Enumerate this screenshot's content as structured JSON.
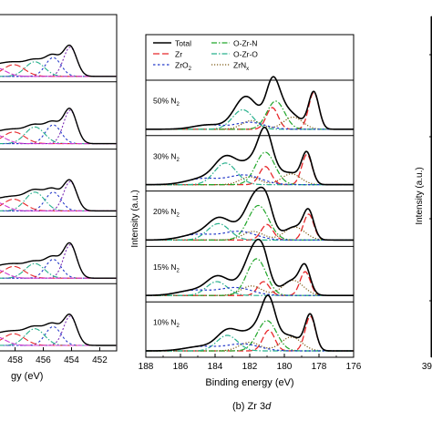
{
  "chart_data": {
    "type": "line",
    "panels": [
      {
        "id": "a",
        "partial": true,
        "x_tick_labels": [
          "458",
          "456",
          "454",
          "452"
        ],
        "x_ticks": [
          458,
          456,
          454,
          452
        ],
        "xlim": [
          459.2,
          450.8
        ],
        "xlabel_fragment": "gy (eV)",
        "stack_count": 5
      },
      {
        "id": "b",
        "caption_prefix": "(b) Zr 3",
        "caption_italic": "d",
        "xlabel": "Binding energy (eV)",
        "ylabel": "Intensity (a.u.)",
        "xlim": [
          188,
          176
        ],
        "x_ticks": [
          188,
          186,
          184,
          182,
          180,
          178,
          176
        ],
        "x_tick_labels": [
          "188",
          "186",
          "184",
          "182",
          "180",
          "178",
          "176"
        ],
        "legend": [
          "Total",
          "Zr",
          "ZrO₂",
          "O-Zr-N",
          "O-Zr-O",
          "ZrNₓ"
        ],
        "series_styles": [
          {
            "name": "Total",
            "color": "#000000",
            "dash": "",
            "width": 1.6
          },
          {
            "name": "Zr",
            "color": "#e8282b",
            "dash": "7,3",
            "width": 1.3
          },
          {
            "name": "ZrO₂",
            "color": "#2339c9",
            "dash": "2.5,2.5",
            "width": 1.2
          },
          {
            "name": "O-Zr-N",
            "color": "#21a62a",
            "dash": "6,2,1.5,2",
            "width": 1.2
          },
          {
            "name": "O-Zr-O",
            "color": "#27b08c",
            "dash": "6,2,1.5,2",
            "width": 1.2
          },
          {
            "name": "ZrNₓ",
            "color": "#7d5a14",
            "dash": "1.2,1.8",
            "width": 1.2
          }
        ],
        "stacks": [
          {
            "label_prefix": "50% N",
            "label_sub": "2",
            "peaks": [
              {
                "series": "Zr",
                "center": 178.3,
                "fwhm": 0.7,
                "height": 0.85
              },
              {
                "series": "Zr",
                "center": 180.7,
                "fwhm": 0.8,
                "height": 0.5
              },
              {
                "series": "ZrNₓ",
                "center": 179.5,
                "fwhm": 1.3,
                "height": 0.28
              },
              {
                "series": "ZrNₓ",
                "center": 181.9,
                "fwhm": 1.3,
                "height": 0.2
              },
              {
                "series": "O-Zr-N",
                "center": 180.5,
                "fwhm": 1.2,
                "height": 0.65
              },
              {
                "series": "O-Zr-O",
                "center": 182.4,
                "fwhm": 1.4,
                "height": 0.45
              },
              {
                "series": "ZrO₂",
                "center": 182.0,
                "fwhm": 2.0,
                "height": 0.16
              },
              {
                "series": "ZrO₂",
                "center": 184.4,
                "fwhm": 2.0,
                "height": 0.1
              }
            ]
          },
          {
            "label_prefix": "30% N",
            "label_sub": "2",
            "peaks": [
              {
                "series": "Zr",
                "center": 178.7,
                "fwhm": 0.7,
                "height": 0.7
              },
              {
                "series": "Zr",
                "center": 181.1,
                "fwhm": 0.8,
                "height": 0.42
              },
              {
                "series": "ZrNₓ",
                "center": 179.6,
                "fwhm": 1.3,
                "height": 0.25
              },
              {
                "series": "ZrNₓ",
                "center": 182.0,
                "fwhm": 1.3,
                "height": 0.18
              },
              {
                "series": "O-Zr-N",
                "center": 181.1,
                "fwhm": 1.3,
                "height": 0.75
              },
              {
                "series": "O-Zr-O",
                "center": 183.4,
                "fwhm": 1.5,
                "height": 0.5
              },
              {
                "series": "ZrO₂",
                "center": 182.3,
                "fwhm": 2.2,
                "height": 0.22
              },
              {
                "series": "ZrO₂",
                "center": 184.7,
                "fwhm": 2.2,
                "height": 0.14
              }
            ]
          },
          {
            "label_prefix": "20% N",
            "label_sub": "2",
            "peaks": [
              {
                "series": "Zr",
                "center": 178.6,
                "fwhm": 0.7,
                "height": 0.6
              },
              {
                "series": "Zr",
                "center": 181.0,
                "fwhm": 0.8,
                "height": 0.36
              },
              {
                "series": "ZrNₓ",
                "center": 179.4,
                "fwhm": 1.4,
                "height": 0.3
              },
              {
                "series": "ZrNₓ",
                "center": 181.8,
                "fwhm": 1.4,
                "height": 0.2
              },
              {
                "series": "O-Zr-N",
                "center": 181.5,
                "fwhm": 1.4,
                "height": 0.8
              },
              {
                "series": "O-Zr-O",
                "center": 183.8,
                "fwhm": 1.5,
                "height": 0.38
              },
              {
                "series": "ZrO₂",
                "center": 182.6,
                "fwhm": 2.2,
                "height": 0.2
              },
              {
                "series": "ZrO₂",
                "center": 185.0,
                "fwhm": 2.2,
                "height": 0.13
              }
            ]
          },
          {
            "label_prefix": "15% N",
            "label_sub": "2",
            "peaks": [
              {
                "series": "Zr",
                "center": 178.8,
                "fwhm": 0.7,
                "height": 0.55
              },
              {
                "series": "Zr",
                "center": 181.2,
                "fwhm": 0.8,
                "height": 0.32
              },
              {
                "series": "ZrNₓ",
                "center": 179.5,
                "fwhm": 1.4,
                "height": 0.35
              },
              {
                "series": "ZrNₓ",
                "center": 181.9,
                "fwhm": 1.4,
                "height": 0.22
              },
              {
                "series": "O-Zr-N",
                "center": 181.6,
                "fwhm": 1.3,
                "height": 0.85
              },
              {
                "series": "O-Zr-O",
                "center": 183.9,
                "fwhm": 1.4,
                "height": 0.32
              },
              {
                "series": "ZrO₂",
                "center": 182.8,
                "fwhm": 2.2,
                "height": 0.18
              },
              {
                "series": "ZrO₂",
                "center": 185.2,
                "fwhm": 2.2,
                "height": 0.12
              }
            ]
          },
          {
            "label_prefix": "10% N",
            "label_sub": "2",
            "peaks": [
              {
                "series": "Zr",
                "center": 178.5,
                "fwhm": 0.7,
                "height": 0.8
              },
              {
                "series": "Zr",
                "center": 180.9,
                "fwhm": 0.8,
                "height": 0.48
              },
              {
                "series": "ZrNₓ",
                "center": 179.6,
                "fwhm": 1.4,
                "height": 0.32
              },
              {
                "series": "ZrNₓ",
                "center": 182.0,
                "fwhm": 1.4,
                "height": 0.2
              },
              {
                "series": "O-Zr-N",
                "center": 181.0,
                "fwhm": 1.3,
                "height": 0.7
              },
              {
                "series": "O-Zr-O",
                "center": 183.3,
                "fwhm": 1.4,
                "height": 0.36
              },
              {
                "series": "ZrO₂",
                "center": 182.4,
                "fwhm": 2.2,
                "height": 0.16
              },
              {
                "series": "ZrO₂",
                "center": 184.8,
                "fwhm": 2.2,
                "height": 0.1
              }
            ]
          }
        ]
      },
      {
        "id": "c",
        "partial": true,
        "ylabel": "Intensity (a.u.)",
        "x_tick_label_fragment": "39"
      }
    ]
  }
}
